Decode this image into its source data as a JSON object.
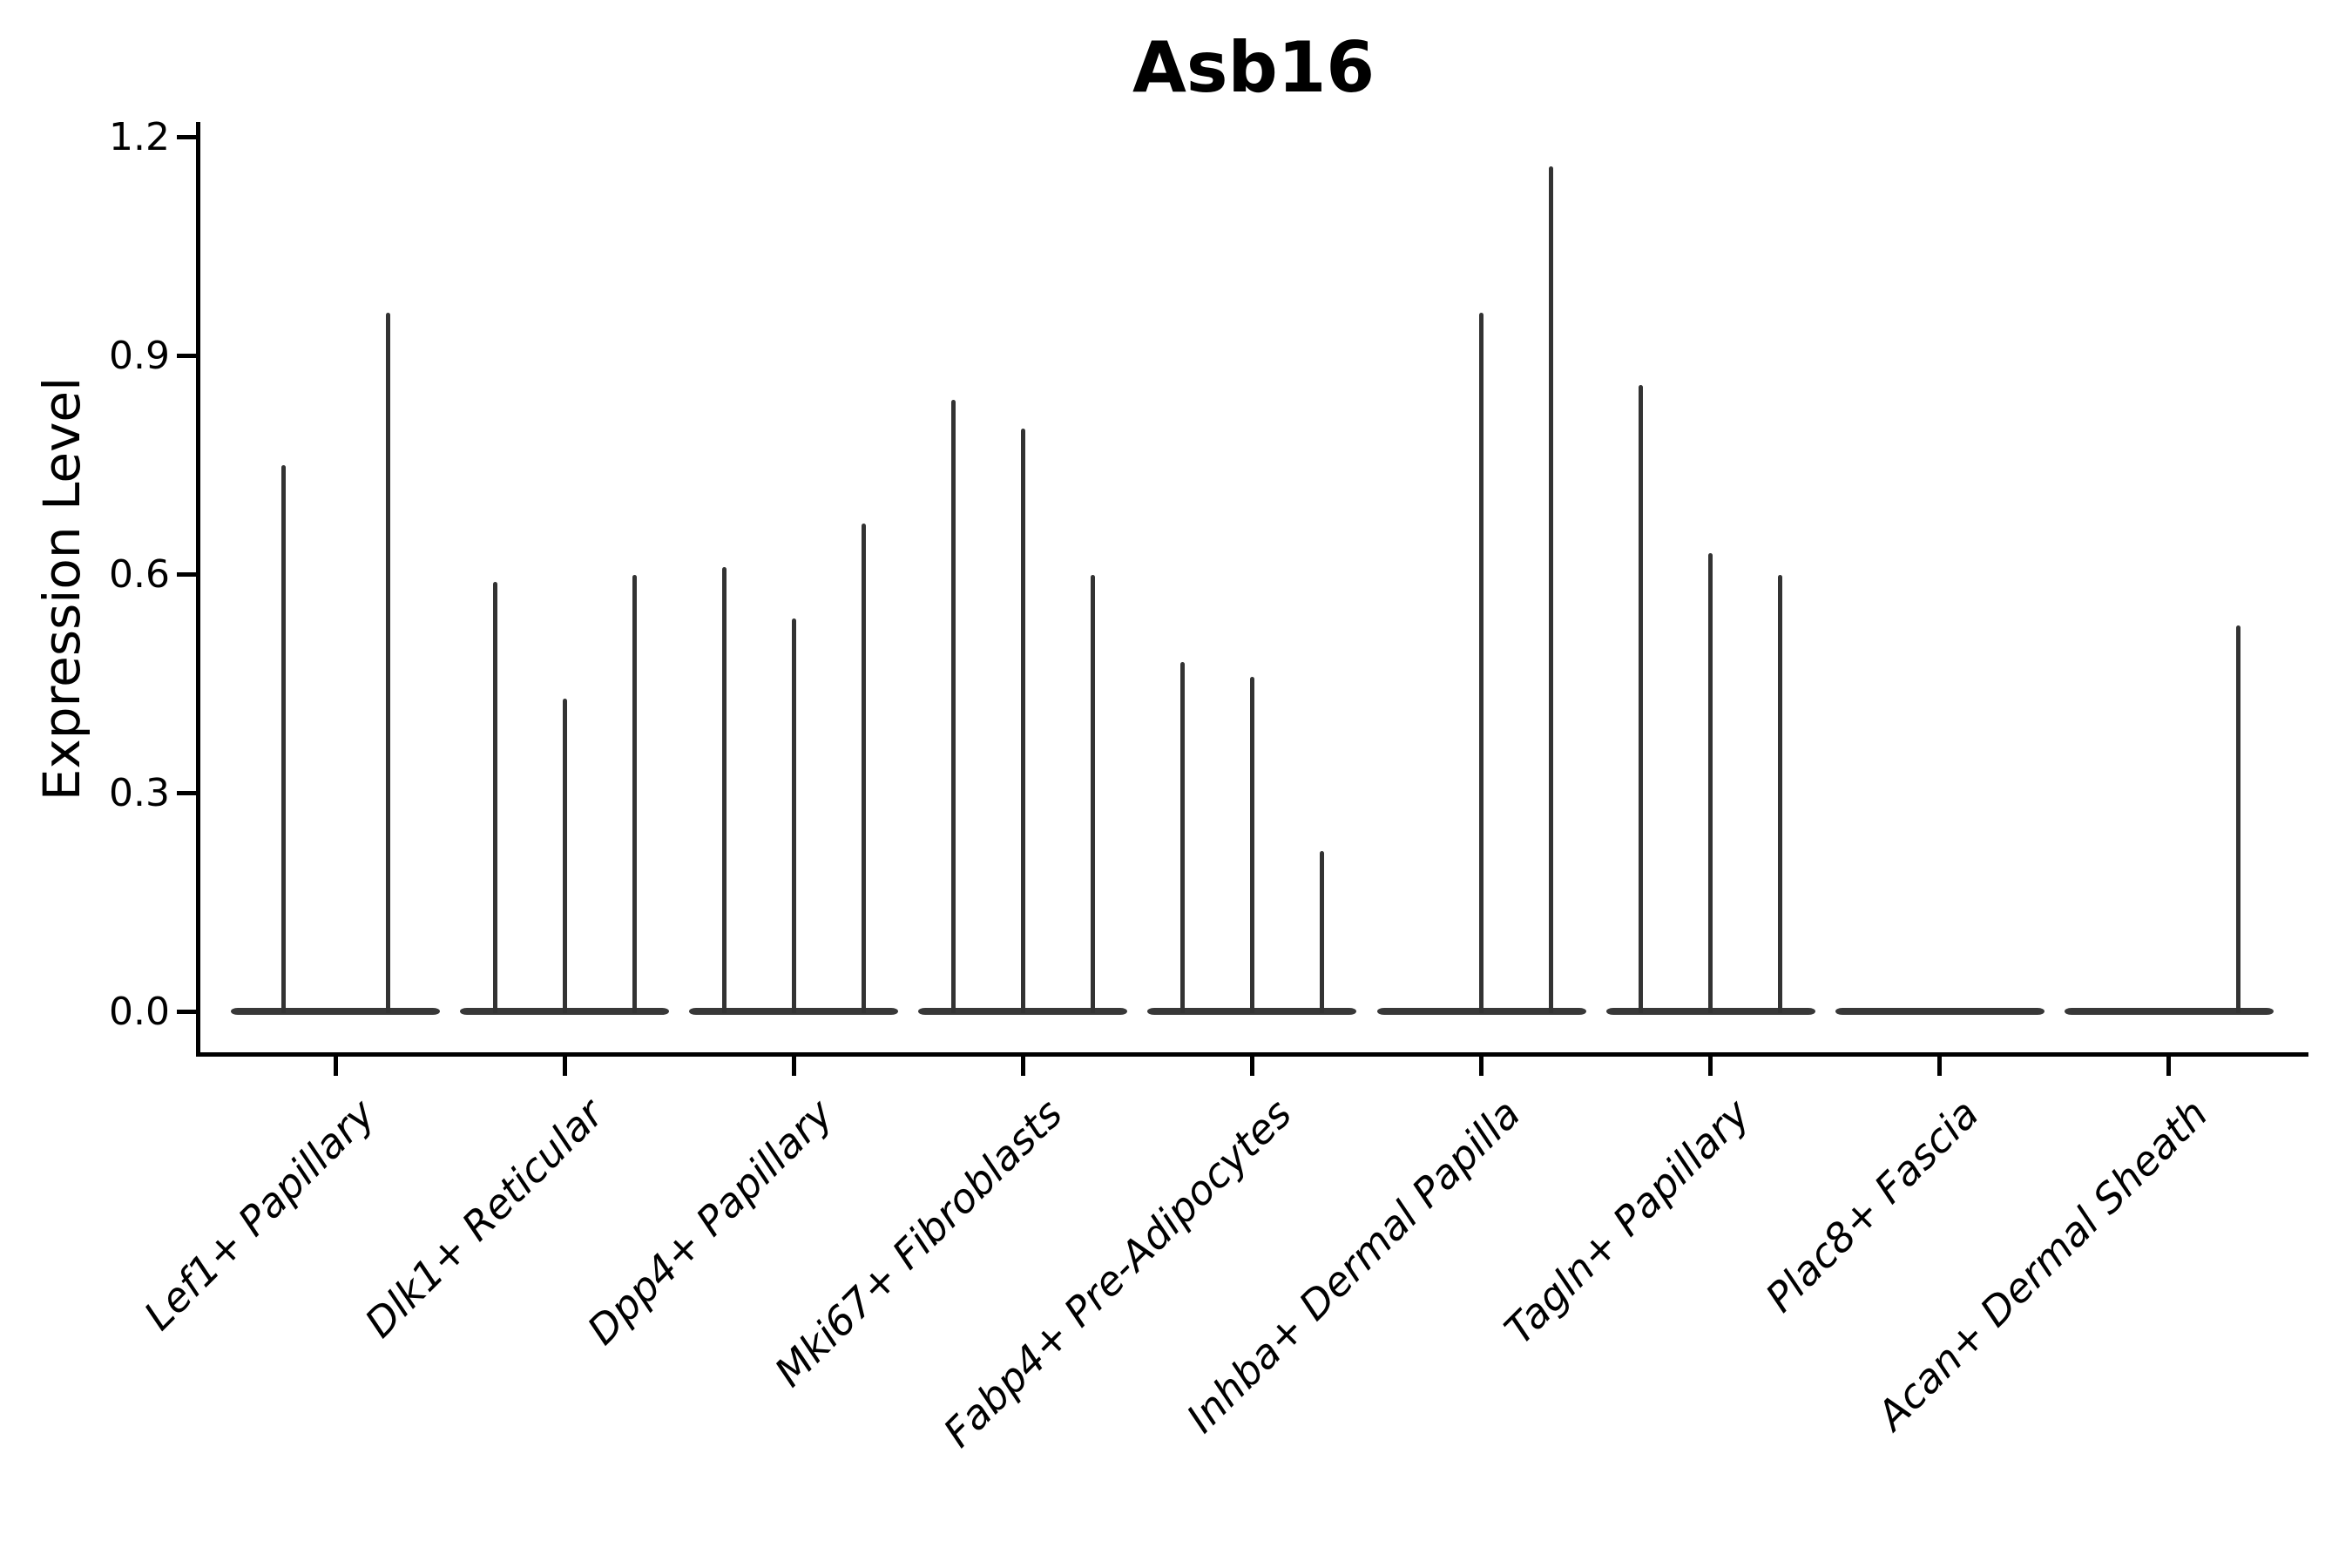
{
  "title": "Asb16",
  "ylabel": "Expression Level",
  "colors": {
    "violin": "#333333",
    "violin_base": "#383838",
    "axis": "#000000",
    "background": "#ffffff"
  },
  "chart_data": {
    "type": "violin",
    "title": "Asb16",
    "xlabel": "",
    "ylabel": "Expression Level",
    "ylim": [
      0,
      1.2
    ],
    "yticks": [
      0.0,
      0.3,
      0.6,
      0.9,
      1.2
    ],
    "ytick_labels": [
      "0.0",
      "0.3",
      "0.6",
      "0.9",
      "1.2"
    ],
    "grid": false,
    "legend": "none",
    "xtick_label_style": "italic, rotated 45deg, right-anchored",
    "categories": [
      "Lef1+ Papillary",
      "Dlk1+ Reticular",
      "Dpp4+ Papillary",
      "Mki67+ Fibroblasts",
      "Fabp4+ Pre-Adipocytes",
      "Inhba+ Dermal Papilla",
      "Tagln+ Papillary",
      "Plac8+ Fascia",
      "Acan+ Dermal Sheath"
    ],
    "groups": [
      {
        "label": "Lef1+ Papillary",
        "violin_peaks": [
          0.75,
          0.96
        ]
      },
      {
        "label": "Dlk1+ Reticular",
        "violin_peaks": [
          0.59,
          0.43,
          0.6
        ]
      },
      {
        "label": "Dpp4+ Papillary",
        "violin_peaks": [
          0.61,
          0.54,
          0.67
        ]
      },
      {
        "label": "Mki67+ Fibroblasts",
        "violin_peaks": [
          0.84,
          0.8,
          0.6
        ]
      },
      {
        "label": "Fabp4+ Pre-Adipocytes",
        "violin_peaks": [
          0.48,
          0.46,
          0.22
        ]
      },
      {
        "label": "Inhba+ Dermal Papilla",
        "violin_peaks": [
          0.0,
          0.96,
          1.16
        ]
      },
      {
        "label": "Tagln+ Papillary",
        "violin_peaks": [
          0.86,
          0.63,
          0.6
        ]
      },
      {
        "label": "Plac8+ Fascia",
        "violin_peaks": [
          0.0,
          0.0,
          0.0
        ]
      },
      {
        "label": "Acan+ Dermal Sheath",
        "violin_peaks": [
          0.0,
          0.0,
          0.53
        ]
      }
    ],
    "note": "Each category shows thin needle violins; peak value is the top of each spike in Expression Level units; 0 means a flat violin (base only)."
  }
}
